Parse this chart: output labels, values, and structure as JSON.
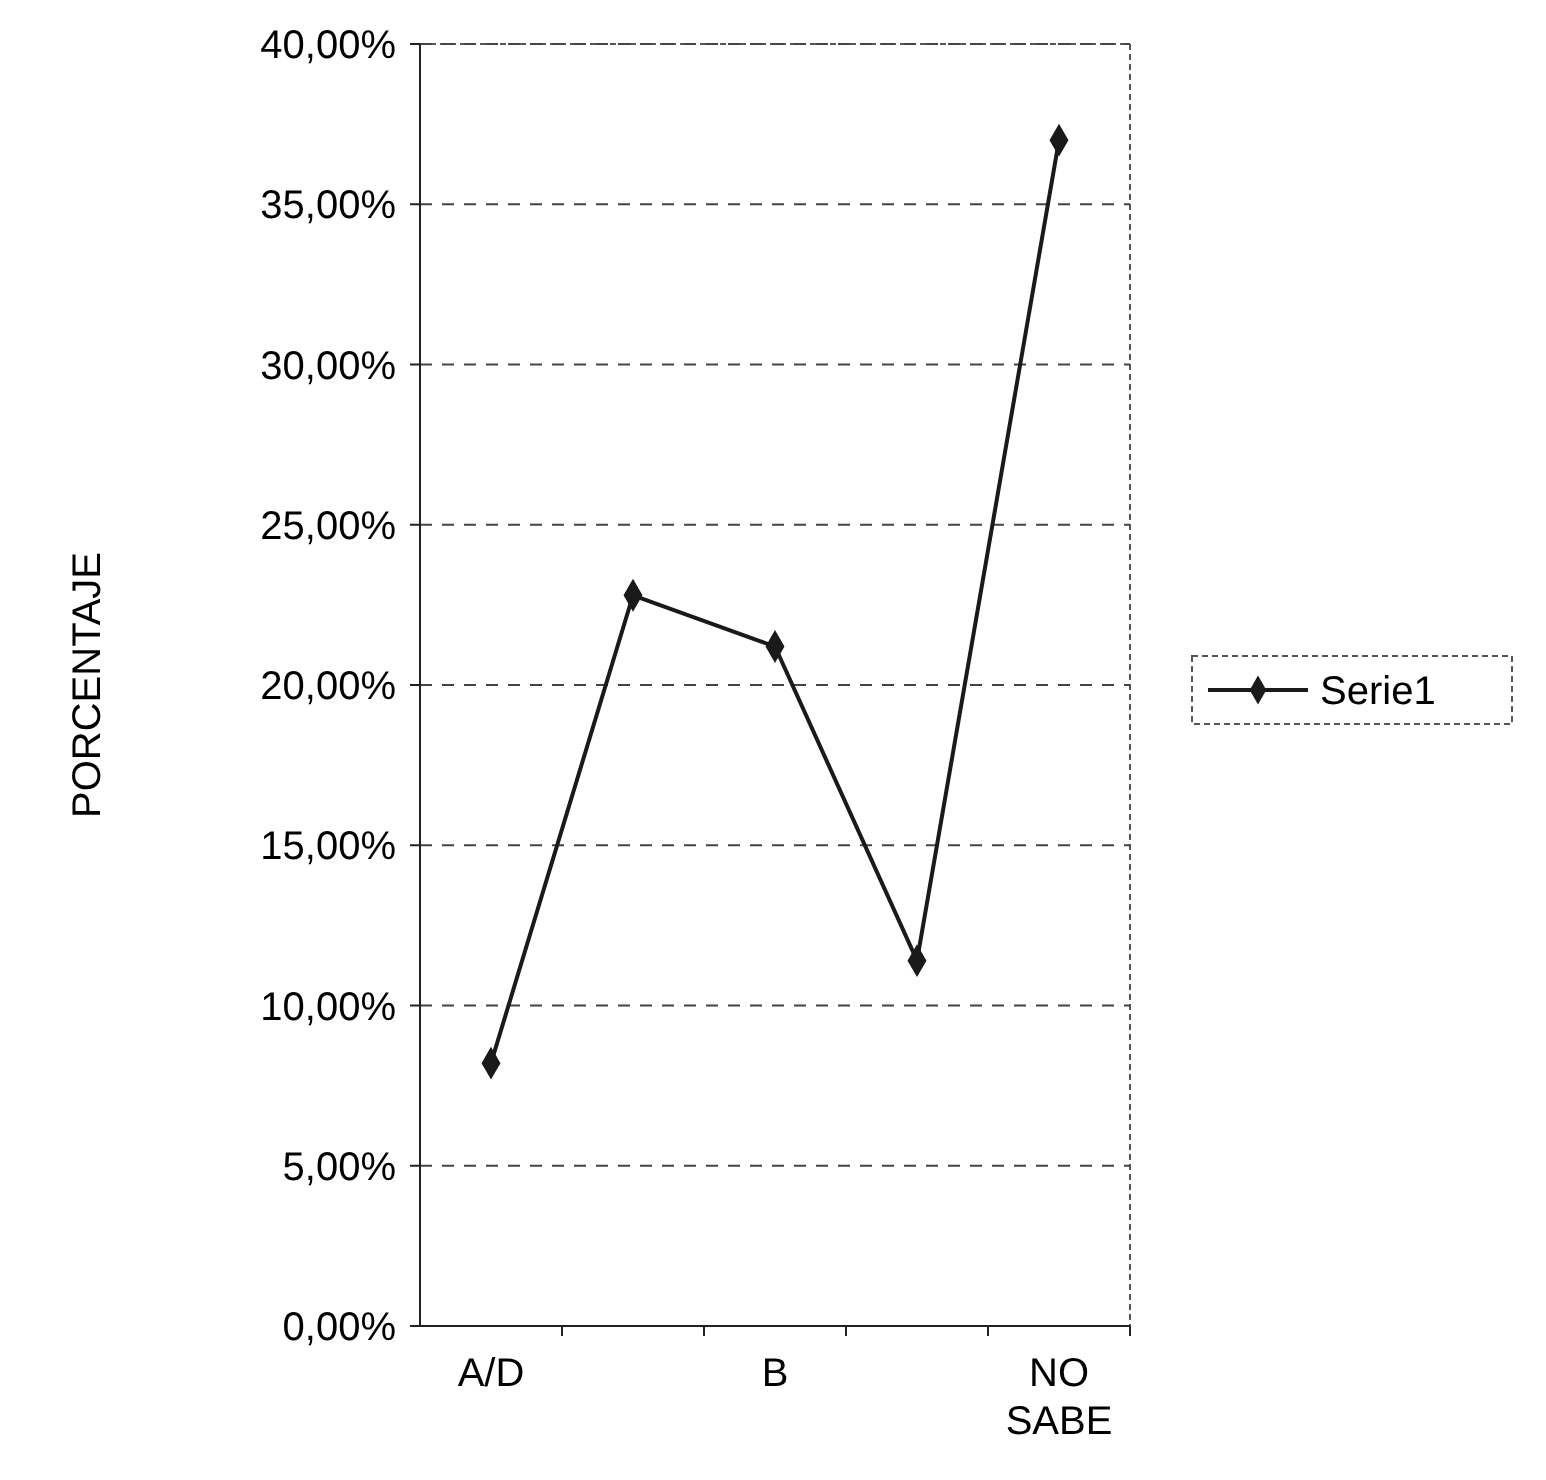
{
  "chart_data": {
    "type": "line",
    "ylabel": "PORCENTAJE",
    "categories": [
      "A/D",
      null,
      "B",
      null,
      "NO SABE"
    ],
    "series": [
      {
        "name": "Serie1",
        "color": "#1a1a1a",
        "values": [
          8.2,
          22.8,
          21.2,
          11.4,
          37.0
        ]
      }
    ],
    "ylim": [
      0,
      40
    ],
    "yticks": [
      {
        "value": 0,
        "label": "0,00%"
      },
      {
        "value": 5,
        "label": "5,00%"
      },
      {
        "value": 10,
        "label": "10,00%"
      },
      {
        "value": 15,
        "label": "15,00%"
      },
      {
        "value": 20,
        "label": "20,00%"
      },
      {
        "value": 25,
        "label": "25,00%"
      },
      {
        "value": 30,
        "label": "30,00%"
      },
      {
        "value": 35,
        "label": "35,00%"
      },
      {
        "value": 40,
        "label": "40,00%"
      }
    ],
    "grid": "y",
    "legend": "right",
    "marker": "diamond",
    "line_style": "solid"
  }
}
